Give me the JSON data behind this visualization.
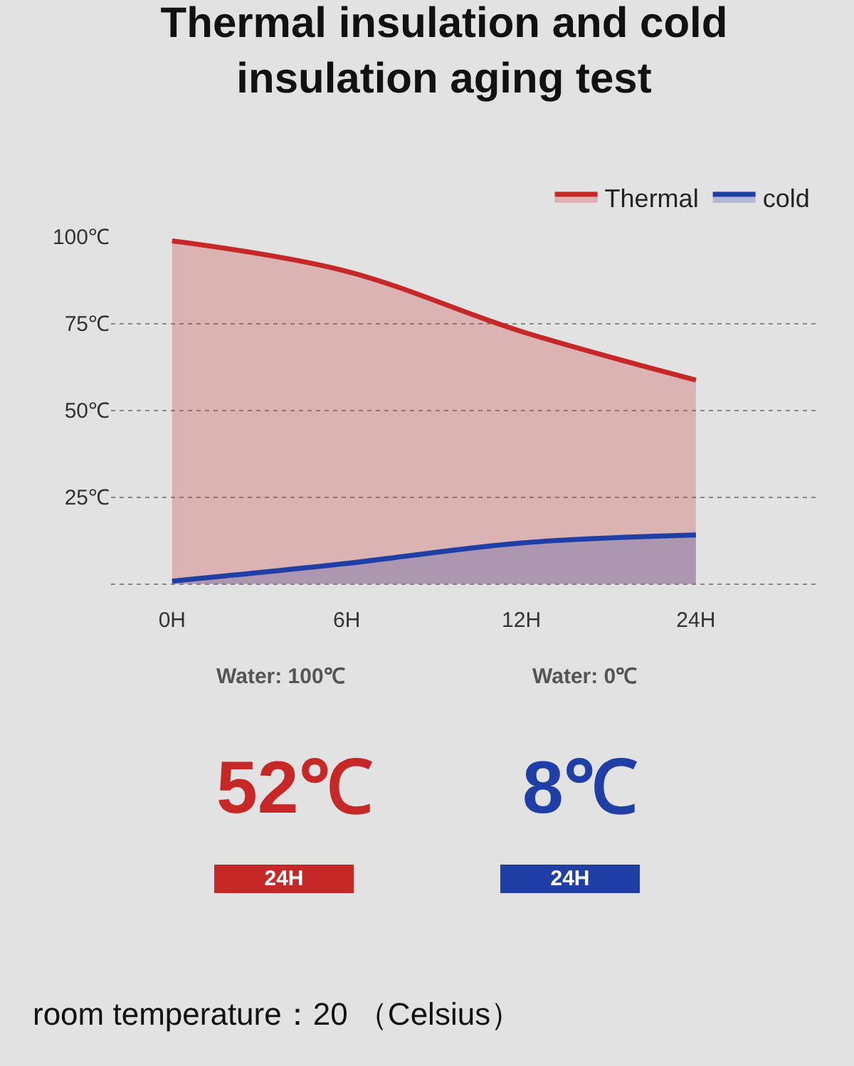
{
  "chart_data": [
    {
      "type": "area",
      "title": "Thermal insulation and cold\ninsulation aging test",
      "categories": [
        "0H",
        "6H",
        "12H",
        "24H"
      ],
      "ylim": [
        -1,
        100
      ],
      "yticks": [
        {
          "value": 0,
          "label": null
        },
        {
          "value": 25,
          "label": "25℃"
        },
        {
          "value": 50,
          "label": "50℃"
        },
        {
          "value": 75,
          "label": "75℃"
        },
        {
          "value": 100,
          "label": "100℃"
        }
      ],
      "grid": "y",
      "legend": "top right",
      "line_style": "solid",
      "marker": "none",
      "series": [
        {
          "name": "Thermal",
          "color": "#c62828",
          "values": [
            98.8,
            90,
            72.7,
            58.7
          ]
        },
        {
          "name": "cold",
          "color": "#1f3fa6",
          "values": [
            0.8,
            5.9,
            11.8,
            14.1
          ]
        }
      ]
    },
    {
      "type": "other",
      "colors": [
        "#c62828",
        "#1f3fa6"
      ],
      "annotations": [
        "Water: 100℃",
        "52℃",
        "24H",
        "Water: 0℃",
        "8℃",
        "24H",
        "room temperature：20 （Celsius）"
      ]
    }
  ]
}
